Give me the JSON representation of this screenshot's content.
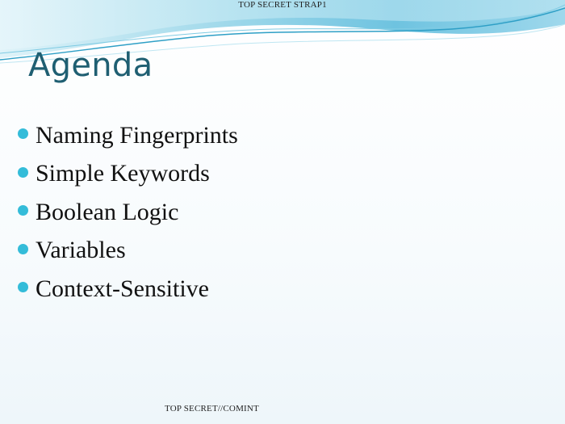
{
  "header": {
    "classification": "TOP SECRET STRAP1"
  },
  "slide": {
    "title": "Agenda",
    "bullets": [
      {
        "label": "Naming Fingerprints"
      },
      {
        "label": "Simple Keywords"
      },
      {
        "label": "Boolean Logic"
      },
      {
        "label": "Variables"
      },
      {
        "label": "Context-Sensitive"
      }
    ]
  },
  "footer": {
    "classification": "TOP SECRET//COMINT"
  },
  "colors": {
    "title": "#1f5f72",
    "bullet": "#34bcd9",
    "wave_light": "#bfe6f2",
    "wave_mid": "#7fcbe3",
    "wave_dark": "#2e9fc6"
  }
}
